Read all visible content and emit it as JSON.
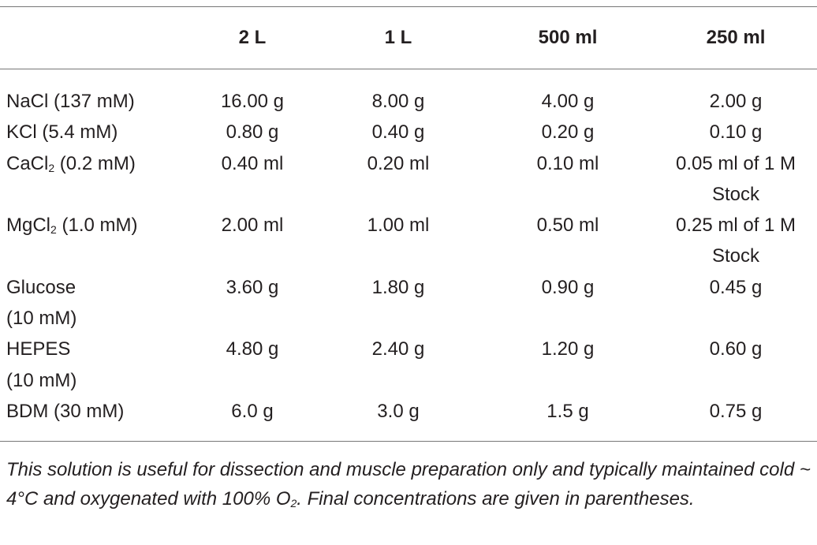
{
  "table": {
    "header": [
      "",
      "2 L",
      "1 L",
      "500 ml",
      "250 ml"
    ],
    "rows": [
      [
        [
          "NaCl (137 mM)"
        ],
        [
          "16.00 g"
        ],
        [
          "8.00 g"
        ],
        [
          "4.00 g"
        ],
        [
          "2.00 g"
        ]
      ],
      [
        [
          "KCl (5.4 mM)"
        ],
        [
          "0.80 g"
        ],
        [
          "0.40 g"
        ],
        [
          "0.20 g"
        ],
        [
          "0.10 g"
        ]
      ],
      [
        [
          {
            "base": "CaCl",
            "sub": "2",
            "after": " (0.2 mM)"
          }
        ],
        [
          "0.40 ml"
        ],
        [
          "0.20 ml"
        ],
        [
          "0.10 ml"
        ],
        [
          "0.05 ml of 1 M",
          "Stock"
        ]
      ],
      [
        [
          {
            "base": "MgCl",
            "sub": "2",
            "after": " (1.0 mM)"
          }
        ],
        [
          "2.00 ml"
        ],
        [
          "1.00 ml"
        ],
        [
          "0.50 ml"
        ],
        [
          "0.25 ml of 1 M",
          "Stock"
        ]
      ],
      [
        [
          "Glucose",
          "(10 mM)"
        ],
        [
          "3.60 g"
        ],
        [
          "1.80 g"
        ],
        [
          "0.90 g"
        ],
        [
          "0.45 g"
        ]
      ],
      [
        [
          "HEPES",
          "(10 mM)"
        ],
        [
          "4.80 g"
        ],
        [
          "2.40 g"
        ],
        [
          "1.20 g"
        ],
        [
          "0.60 g"
        ]
      ],
      [
        [
          "BDM (30 mM)"
        ],
        [
          "6.0 g"
        ],
        [
          "3.0 g"
        ],
        [
          "1.5 g"
        ],
        [
          "0.75 g"
        ]
      ]
    ],
    "footnote": {
      "base": "This solution is useful for dissection and muscle preparation only and typically maintained cold ~ 4°C and oxygenated with 100% O",
      "sub": "2",
      "after": ". Final concentrations are given in parentheses."
    }
  }
}
